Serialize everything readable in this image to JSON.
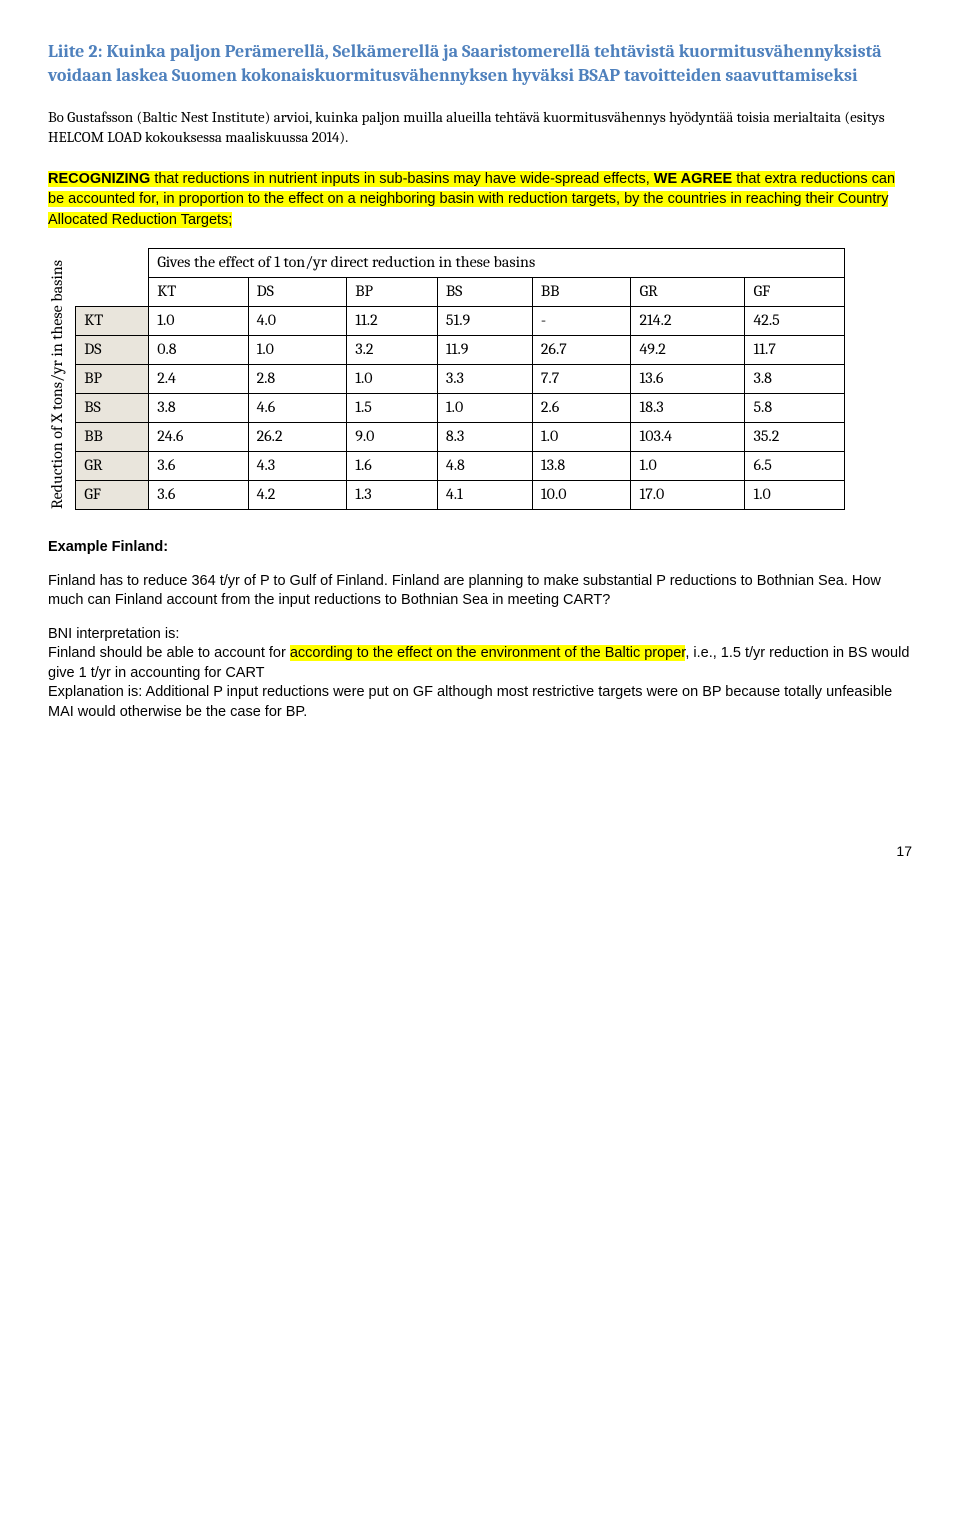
{
  "title": "Liite 2: Kuinka paljon Perämerellä, Selkämerellä ja Saaristomerellä tehtävistä kuormitusvähennyksistä voidaan laskea Suomen kokonaiskuormitusvähennyksen hyväksi BSAP tavoitteiden saavuttamiseksi",
  "intro": "Bo Gustafsson (Baltic Nest Institute) arvioi, kuinka paljon muilla alueilla tehtävä kuormitusvähennys hyödyntää toisia merialtaita (esitys HELCOM LOAD kokouksessa maaliskuussa 2014).",
  "recognize": {
    "lead": "RECOGNIZING",
    "mid1": " that reductions in nutrient inputs in sub-basins may have wide-spread effects, ",
    "we_agree": "WE AGREE",
    "mid2": " that extra reductions can be accounted for, in proportion to the effect on a neighboring basin with reduction targets, by the countries in reaching their Country Allocated Reduction Targets;"
  },
  "table": {
    "vertical_label": "Reduction of X tons/yr in these basins",
    "top_caption": "Gives the effect of 1 ton/yr direct reduction in these basins",
    "cols": [
      "KT",
      "DS",
      "BP",
      "BS",
      "BB",
      "GR",
      "GF"
    ],
    "rows": [
      {
        "h": "KT",
        "v": [
          "1.0",
          "4.0",
          "11.2",
          "51.9",
          "-",
          "214.2",
          "42.5"
        ]
      },
      {
        "h": "DS",
        "v": [
          "0.8",
          "1.0",
          "3.2",
          "11.9",
          "26.7",
          "49.2",
          "11.7"
        ]
      },
      {
        "h": "BP",
        "v": [
          "2.4",
          "2.8",
          "1.0",
          "3.3",
          "7.7",
          "13.6",
          "3.8"
        ]
      },
      {
        "h": "BS",
        "v": [
          "3.8",
          "4.6",
          "1.5",
          "1.0",
          "2.6",
          "18.3",
          "5.8"
        ]
      },
      {
        "h": "BB",
        "v": [
          "24.6",
          "26.2",
          "9.0",
          "8.3",
          "1.0",
          "103.4",
          "35.2"
        ]
      },
      {
        "h": "GR",
        "v": [
          "3.6",
          "4.3",
          "1.6",
          "4.8",
          "13.8",
          "1.0",
          "6.5"
        ]
      },
      {
        "h": "GF",
        "v": [
          "3.6",
          "4.2",
          "1.3",
          "4.1",
          "10.0",
          "17.0",
          "1.0"
        ]
      }
    ]
  },
  "example_heading": "Example Finland:",
  "para1": "Finland has to reduce 364 t/yr of P to Gulf of Finland. Finland are planning to make substantial P reductions to Bothnian Sea. How much can Finland account from the input reductions to Bothnian Sea in meeting CART?",
  "bni_line": "BNI interpretation is:",
  "p2a": "Finland should be able to account for ",
  "p2hl": "according to the effect on the environment of the Baltic proper",
  "p2b": ", i.e., 1.5 t/yr reduction in BS would give 1 t/yr in accounting for CART",
  "p3": "Explanation is: Additional P input reductions were put on GF although most restrictive targets were on BP because totally unfeasible MAI would otherwise be the case for BP.",
  "page": "17"
}
